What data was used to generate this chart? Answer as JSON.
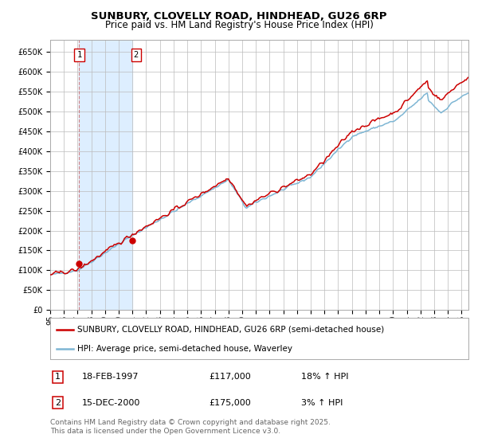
{
  "title1": "SUNBURY, CLOVELLY ROAD, HINDHEAD, GU26 6RP",
  "title2": "Price paid vs. HM Land Registry's House Price Index (HPI)",
  "ylim": [
    0,
    680000
  ],
  "yticks": [
    0,
    50000,
    100000,
    150000,
    200000,
    250000,
    300000,
    350000,
    400000,
    450000,
    500000,
    550000,
    600000,
    650000
  ],
  "xlim_start": 1995.0,
  "xlim_end": 2025.5,
  "sale1_date": 1997.12,
  "sale1_price": 117000,
  "sale1_label": "1",
  "sale2_date": 2001.0,
  "sale2_price": 175000,
  "sale2_label": "2",
  "hpi_color": "#7eb6d4",
  "price_color": "#cc0000",
  "shade_color": "#ddeeff",
  "grid_color": "#bbbbbb",
  "bg_color": "#ffffff",
  "legend_label1": "SUNBURY, CLOVELLY ROAD, HINDHEAD, GU26 6RP (semi-detached house)",
  "legend_label2": "HPI: Average price, semi-detached house, Waverley",
  "table_row1": [
    "1",
    "18-FEB-1997",
    "£117,000",
    "18% ↑ HPI"
  ],
  "table_row2": [
    "2",
    "15-DEC-2000",
    "£175,000",
    "3% ↑ HPI"
  ],
  "footnote": "Contains HM Land Registry data © Crown copyright and database right 2025.\nThis data is licensed under the Open Government Licence v3.0.",
  "title_fontsize": 9.5,
  "subtitle_fontsize": 8.5,
  "tick_fontsize": 7,
  "legend_fontsize": 7.5,
  "table_fontsize": 8,
  "footnote_fontsize": 6.5
}
